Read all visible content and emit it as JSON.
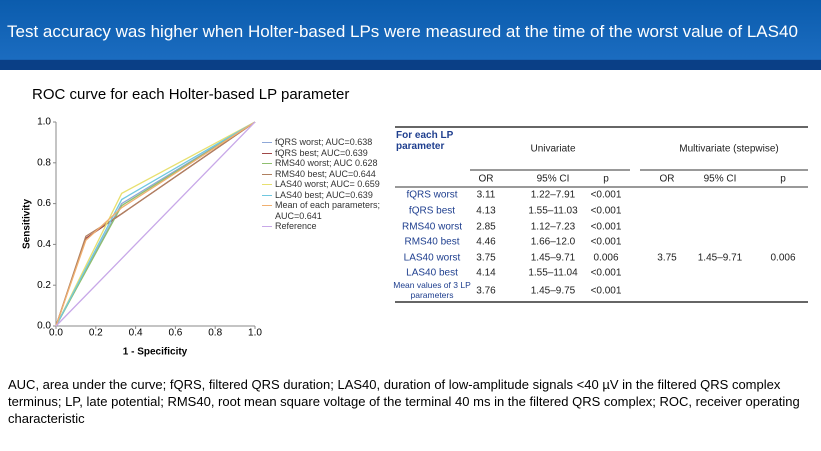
{
  "header": {
    "title": "Test accuracy was higher when Holter-based LPs were measured at the time of the worst value of LAS40"
  },
  "chart_data": {
    "type": "line",
    "title": "ROC curve for each Holter-based LP parameter",
    "x_label": "1 - Specificity",
    "y_label": "Sensitivity",
    "xlim": [
      0,
      1
    ],
    "ylim": [
      0,
      1
    ],
    "xticks": [
      {
        "value": 0,
        "label": "0.0"
      },
      0.2,
      0.4,
      0.6,
      0.8,
      {
        "value": 1,
        "label": "1.0"
      }
    ],
    "yticks": [
      {
        "value": 0,
        "label": "0.0"
      },
      0.2,
      0.4,
      0.6,
      0.8,
      {
        "value": 1,
        "label": "1.0"
      }
    ],
    "series": [
      {
        "name": "fQRS worst; AUC=0.638",
        "color": "#8fa8d8",
        "x": [
          0,
          0.33,
          1
        ],
        "values": [
          0,
          0.6,
          1
        ]
      },
      {
        "name": "fQRS best; AUC=0.639",
        "color": "#a04848",
        "x": [
          0,
          0.15,
          0.33,
          1
        ],
        "values": [
          0,
          0.43,
          0.55,
          1
        ]
      },
      {
        "name": "RMS40 worst; AUC 0.628",
        "color": "#8fbf6f",
        "x": [
          0,
          0.33,
          1
        ],
        "values": [
          0,
          0.59,
          1
        ]
      },
      {
        "name": "RMS40 best; AUC=0.644",
        "color": "#b08060",
        "x": [
          0,
          0.15,
          0.33,
          1
        ],
        "values": [
          0,
          0.44,
          0.55,
          1
        ]
      },
      {
        "name": "LAS40 worst; AUC= 0.659",
        "color": "#e8e070",
        "x": [
          0,
          0.33,
          1
        ],
        "values": [
          0,
          0.65,
          1
        ]
      },
      {
        "name": "LAS40 best; AUC=0.639",
        "color": "#70c8e0",
        "x": [
          0,
          0.33,
          1
        ],
        "values": [
          0,
          0.62,
          1
        ]
      },
      {
        "name": "Mean of each parameters; AUC=0.641",
        "color": "#f0b070",
        "x": [
          0,
          0.15,
          0.33,
          1
        ],
        "values": [
          0,
          0.42,
          0.58,
          1
        ]
      },
      {
        "name": "Reference",
        "color": "#c8a8e8",
        "x": [
          0,
          1
        ],
        "values": [
          0,
          1
        ]
      }
    ]
  },
  "table": {
    "corner": "For each LP parameter",
    "groups": [
      "Univariate",
      "Multivariate (stepwise)"
    ],
    "columns": [
      "OR",
      "95% CI",
      "p",
      "OR",
      "95% CI",
      "p"
    ],
    "rows": [
      [
        "fQRS worst",
        "3.11",
        "1.22–7.91",
        "<0.001"
      ],
      [
        "fQRS best",
        "4.13",
        "1.55–11.03",
        "<0.001"
      ],
      [
        "RMS40 worst",
        "2.85",
        "1.12–7.23",
        "<0.001"
      ],
      [
        "RMS40 best",
        "4.46",
        "1.66–12.0",
        "<0.001"
      ],
      [
        "LAS40 worst",
        "3.75",
        "1.45–9.71",
        "0.006",
        "3.75",
        "1.45–9.71",
        "0.006"
      ],
      [
        "LAS40 best",
        "4.14",
        "1.55–11.04",
        "<0.001"
      ],
      [
        "Mean values of 3 LP parameters",
        "3.76",
        "1.45–9.75",
        "<0.001"
      ]
    ]
  },
  "footnote": "AUC, area under the curve; fQRS, filtered QRS duration; LAS40, duration of low-amplitude signals <40 µV in the filtered QRS complex terminus; LP, late potential; RMS40, root mean square voltage of the terminal 40 ms in the filtered QRS complex; ROC, receiver operating characteristic"
}
